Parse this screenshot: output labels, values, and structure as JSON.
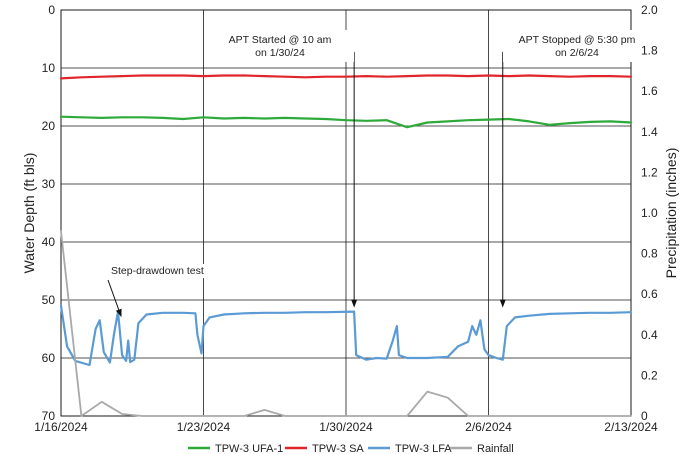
{
  "chart_data": {
    "type": "line",
    "ylabel": "Water Depth (ft bls)",
    "y2label": "Precipitation (inches)",
    "ylim": [
      0,
      70
    ],
    "y_inverted": true,
    "y2lim": [
      0,
      2.0
    ],
    "xlim": [
      "2024-01-16",
      "2024-02-13"
    ],
    "x_ticks": [
      "1/16/2024",
      "1/23/2024",
      "1/30/2024",
      "2/6/2024",
      "2/13/2024"
    ],
    "y_ticks": [
      "0",
      "10",
      "20",
      "30",
      "40",
      "50",
      "60",
      "70"
    ],
    "y2_ticks": [
      "0",
      "0.2",
      "0.4",
      "0.6",
      "0.8",
      "1.0",
      "1.2",
      "1.4",
      "1.6",
      "1.8",
      "2.0"
    ],
    "grid": true,
    "legend_position": "bottom",
    "series": [
      {
        "name": "TPW-3 UFA-1",
        "color": "#2eaa3a",
        "axis": "left",
        "points": [
          [
            "2024-01-16",
            18.4
          ],
          [
            "2024-01-17",
            18.5
          ],
          [
            "2024-01-18",
            18.6
          ],
          [
            "2024-01-19",
            18.5
          ],
          [
            "2024-01-20",
            18.5
          ],
          [
            "2024-01-21",
            18.6
          ],
          [
            "2024-01-22",
            18.8
          ],
          [
            "2024-01-23",
            18.5
          ],
          [
            "2024-01-24",
            18.7
          ],
          [
            "2024-01-25",
            18.6
          ],
          [
            "2024-01-26",
            18.7
          ],
          [
            "2024-01-27",
            18.6
          ],
          [
            "2024-01-28",
            18.7
          ],
          [
            "2024-01-29",
            18.8
          ],
          [
            "2024-01-30",
            19.0
          ],
          [
            "2024-01-31",
            19.1
          ],
          [
            "2024-02-01",
            19.0
          ],
          [
            "2024-02-02",
            20.2
          ],
          [
            "2024-02-03",
            19.4
          ],
          [
            "2024-02-04",
            19.2
          ],
          [
            "2024-02-05",
            19.0
          ],
          [
            "2024-02-06",
            18.9
          ],
          [
            "2024-02-07",
            18.8
          ],
          [
            "2024-02-08",
            19.2
          ],
          [
            "2024-02-09",
            19.8
          ],
          [
            "2024-02-10",
            19.5
          ],
          [
            "2024-02-11",
            19.3
          ],
          [
            "2024-02-12",
            19.2
          ],
          [
            "2024-02-13",
            19.4
          ]
        ]
      },
      {
        "name": "TPW-3 SA",
        "color": "#e0262b",
        "axis": "left",
        "points": [
          [
            "2024-01-16",
            11.8
          ],
          [
            "2024-01-17",
            11.6
          ],
          [
            "2024-01-18",
            11.5
          ],
          [
            "2024-01-19",
            11.4
          ],
          [
            "2024-01-20",
            11.3
          ],
          [
            "2024-01-21",
            11.3
          ],
          [
            "2024-01-22",
            11.3
          ],
          [
            "2024-01-23",
            11.4
          ],
          [
            "2024-01-24",
            11.3
          ],
          [
            "2024-01-25",
            11.3
          ],
          [
            "2024-01-26",
            11.4
          ],
          [
            "2024-01-27",
            11.5
          ],
          [
            "2024-01-28",
            11.6
          ],
          [
            "2024-01-29",
            11.5
          ],
          [
            "2024-01-30",
            11.5
          ],
          [
            "2024-01-31",
            11.4
          ],
          [
            "2024-02-01",
            11.5
          ],
          [
            "2024-02-02",
            11.4
          ],
          [
            "2024-02-03",
            11.3
          ],
          [
            "2024-02-04",
            11.3
          ],
          [
            "2024-02-05",
            11.4
          ],
          [
            "2024-02-06",
            11.3
          ],
          [
            "2024-02-07",
            11.4
          ],
          [
            "2024-02-08",
            11.3
          ],
          [
            "2024-02-09",
            11.4
          ],
          [
            "2024-02-10",
            11.5
          ],
          [
            "2024-02-11",
            11.4
          ],
          [
            "2024-02-12",
            11.4
          ],
          [
            "2024-02-13",
            11.5
          ]
        ]
      },
      {
        "name": "TPW-3 LFA",
        "color": "#5b9bd5",
        "axis": "left",
        "points": [
          [
            "2024-01-16",
            51
          ],
          [
            "2024-01-16.3",
            58
          ],
          [
            "2024-01-16.7",
            60.5
          ],
          [
            "2024-01-17.4",
            61.2
          ],
          [
            "2024-01-17.7",
            55
          ],
          [
            "2024-01-17.9",
            53.5
          ],
          [
            "2024-01-18.1",
            59
          ],
          [
            "2024-01-18.4",
            60.8
          ],
          [
            "2024-01-18.6",
            56
          ],
          [
            "2024-01-18.8",
            52
          ],
          [
            "2024-01-19.0",
            59.5
          ],
          [
            "2024-01-19.2",
            60.5
          ],
          [
            "2024-01-19.3",
            57
          ],
          [
            "2024-01-19.4",
            60.7
          ],
          [
            "2024-01-19.6",
            60.3
          ],
          [
            "2024-01-19.8",
            54
          ],
          [
            "2024-01-20.2",
            52.5
          ],
          [
            "2024-01-21",
            52.2
          ],
          [
            "2024-01-22",
            52.2
          ],
          [
            "2024-01-22.6",
            52.3
          ],
          [
            "2024-01-22.7",
            56
          ],
          [
            "2024-01-22.9",
            59.2
          ],
          [
            "2024-01-23.0",
            54.5
          ],
          [
            "2024-01-23.3",
            53
          ],
          [
            "2024-01-24",
            52.5
          ],
          [
            "2024-01-25",
            52.3
          ],
          [
            "2024-01-26",
            52.2
          ],
          [
            "2024-01-27",
            52.2
          ],
          [
            "2024-01-28",
            52.1
          ],
          [
            "2024-01-29",
            52.1
          ],
          [
            "2024-01-30.4",
            52.0
          ],
          [
            "2024-01-30.5",
            59.5
          ],
          [
            "2024-01-31",
            60.3
          ],
          [
            "2024-01-31.5",
            60.0
          ],
          [
            "2024-02-01.0",
            60.1
          ],
          [
            "2024-02-01.3",
            57
          ],
          [
            "2024-02-01.5",
            54.5
          ],
          [
            "2024-02-01.6",
            59.5
          ],
          [
            "2024-02-02",
            60.0
          ],
          [
            "2024-02-03",
            60.0
          ],
          [
            "2024-02-04",
            59.8
          ],
          [
            "2024-02-04.5",
            58
          ],
          [
            "2024-02-05.0",
            57.2
          ],
          [
            "2024-02-05.2",
            54.5
          ],
          [
            "2024-02-05.4",
            56
          ],
          [
            "2024-02-05.6",
            53.5
          ],
          [
            "2024-02-05.8",
            58.5
          ],
          [
            "2024-02-06.0",
            59.5
          ],
          [
            "2024-02-06.4",
            60.0
          ],
          [
            "2024-02-06.7",
            60.3
          ],
          [
            "2024-02-06.9",
            54.5
          ],
          [
            "2024-02-07.3",
            53.0
          ],
          [
            "2024-02-08",
            52.7
          ],
          [
            "2024-02-09",
            52.4
          ],
          [
            "2024-02-10",
            52.3
          ],
          [
            "2024-02-11",
            52.2
          ],
          [
            "2024-02-12",
            52.2
          ],
          [
            "2024-02-13",
            52.1
          ]
        ]
      },
      {
        "name": "Rainfall",
        "color": "#a9a9a9",
        "axis": "right",
        "points": [
          [
            "2024-01-16",
            0.91
          ],
          [
            "2024-01-17",
            0.0
          ],
          [
            "2024-01-18",
            0.07
          ],
          [
            "2024-01-19",
            0.01
          ],
          [
            "2024-01-20",
            0.0
          ],
          [
            "2024-01-21",
            0.0
          ],
          [
            "2024-01-22",
            0.0
          ],
          [
            "2024-01-23",
            0.0
          ],
          [
            "2024-01-24",
            0.0
          ],
          [
            "2024-01-25",
            0.0
          ],
          [
            "2024-01-26",
            0.03
          ],
          [
            "2024-01-27",
            0.0
          ],
          [
            "2024-01-28",
            0.0
          ],
          [
            "2024-01-29",
            0.0
          ],
          [
            "2024-01-30",
            0.0
          ],
          [
            "2024-01-31",
            0.0
          ],
          [
            "2024-02-01",
            0.0
          ],
          [
            "2024-02-02",
            0.0
          ],
          [
            "2024-02-03",
            0.12
          ],
          [
            "2024-02-04",
            0.09
          ],
          [
            "2024-02-05",
            0.0
          ],
          [
            "2024-02-06",
            0.0
          ],
          [
            "2024-02-07",
            0.0
          ],
          [
            "2024-02-08",
            0.0
          ],
          [
            "2024-02-09",
            0.0
          ],
          [
            "2024-02-10",
            0.0
          ],
          [
            "2024-02-11",
            0.0
          ],
          [
            "2024-02-12",
            0.0
          ],
          [
            "2024-02-13",
            0.0
          ]
        ]
      }
    ],
    "annotations": [
      {
        "lines": [
          "APT Started @ 10 am",
          "on 1/30/24"
        ],
        "x": "2024-01-30.4",
        "y": 52
      },
      {
        "lines": [
          "APT Stopped @ 5:30 pm",
          "on 2/6/24"
        ],
        "x": "2024-02-06.7",
        "y": 52
      },
      {
        "lines": [
          "Step-drawdown test"
        ],
        "x": "2024-01-19",
        "y": 53
      }
    ]
  }
}
